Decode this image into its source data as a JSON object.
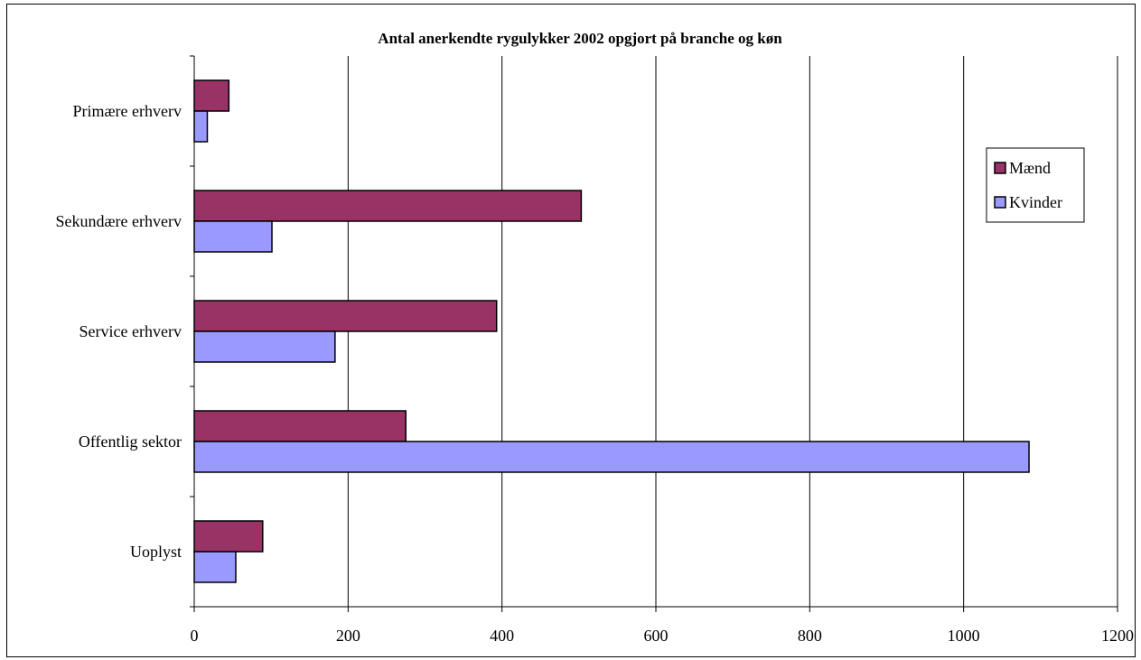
{
  "chart_data": {
    "type": "bar",
    "orientation": "horizontal",
    "title": "Antal anerkendte rygulykker 2002 opgjort på branche og køn",
    "xlabel": "",
    "ylabel": "",
    "categories": [
      "Primære erhverv",
      "Sekundære erhverv",
      "Service erhverv",
      "Offentlig sektor",
      "Uoplyst"
    ],
    "series": [
      {
        "name": "Mænd",
        "color": "#993366",
        "values": [
          45,
          503,
          393,
          275,
          89
        ]
      },
      {
        "name": "Kvinder",
        "color": "#9999ff",
        "values": [
          17,
          101,
          183,
          1085,
          54
        ]
      }
    ],
    "xlim": [
      0,
      1200
    ],
    "xticks": [
      "0",
      "200",
      "400",
      "600",
      "800",
      "1000",
      "1200"
    ],
    "grid": "vertical",
    "legend_position": "right"
  }
}
